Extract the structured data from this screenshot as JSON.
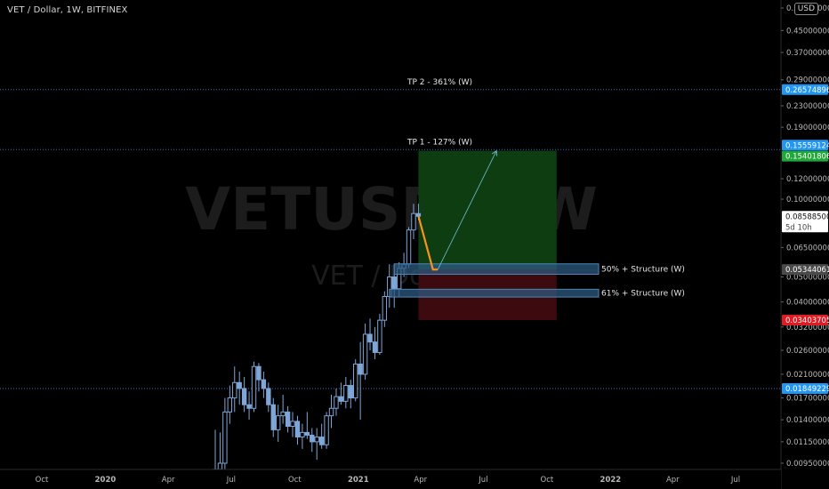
{
  "header": {
    "title": "VET / Dollar, 1W, BITFINEX",
    "currency": "USD"
  },
  "watermark": {
    "symbol": "VETUSD, 1W",
    "description": "VET / Dollar"
  },
  "colors": {
    "background": "#000000",
    "candle": "#7ea7d8",
    "accent_orange": "#f7941d",
    "projection_line": "#6ec0d6",
    "dotted_line": "#3f6fb8",
    "tp_label_bg": "#2196f3",
    "profit_zone": "#0f3d12",
    "loss_zone": "#3d0b0f",
    "target_label_bg": "#22a83a",
    "stop_label_bg": "#e01b24",
    "structure_box": "#2e5a80",
    "structure_box_border": "#4a86b8"
  },
  "chart_data": {
    "type": "candlestick",
    "yscale": "log",
    "ylim": [
      0.0085,
      0.6
    ],
    "y_ticks": [
      "0.55000000",
      "0.45000000",
      "0.37000000",
      "0.29000000",
      "0.23000000",
      "0.19000000",
      "0.12000000",
      "0.10000000",
      "0.06500000",
      "0.05000000",
      "0.04000000",
      "0.03200000",
      "0.02600000",
      "0.02100000",
      "0.01700000",
      "0.01400000",
      "0.01150000",
      "0.00950000"
    ],
    "x_ticks": [
      "Oct",
      "2020",
      "Apr",
      "Jul",
      "Oct",
      "2021",
      "Apr",
      "Jul",
      "Oct",
      "2022",
      "Apr",
      "Jul"
    ],
    "x_tick_dates": [
      "2019-10-01",
      "2020-01-01",
      "2020-04-01",
      "2020-07-01",
      "2020-10-01",
      "2021-01-01",
      "2021-04-01",
      "2021-07-01",
      "2021-10-01",
      "2022-01-01",
      "2022-04-01",
      "2022-07-01"
    ],
    "candles": [
      {
        "date": "2020-06-08",
        "o": 0.0088,
        "h": 0.0128,
        "l": 0.008,
        "c": 0.009
      },
      {
        "date": "2020-06-15",
        "o": 0.009,
        "h": 0.0125,
        "l": 0.0082,
        "c": 0.0095
      },
      {
        "date": "2020-06-22",
        "o": 0.0095,
        "h": 0.017,
        "l": 0.0088,
        "c": 0.015
      },
      {
        "date": "2020-06-29",
        "o": 0.015,
        "h": 0.019,
        "l": 0.0135,
        "c": 0.017
      },
      {
        "date": "2020-07-06",
        "o": 0.017,
        "h": 0.0225,
        "l": 0.015,
        "c": 0.0195
      },
      {
        "date": "2020-07-13",
        "o": 0.0195,
        "h": 0.0215,
        "l": 0.016,
        "c": 0.0185
      },
      {
        "date": "2020-07-20",
        "o": 0.0185,
        "h": 0.0205,
        "l": 0.015,
        "c": 0.016
      },
      {
        "date": "2020-07-27",
        "o": 0.016,
        "h": 0.018,
        "l": 0.014,
        "c": 0.0155
      },
      {
        "date": "2020-08-03",
        "o": 0.0155,
        "h": 0.0235,
        "l": 0.015,
        "c": 0.0225
      },
      {
        "date": "2020-08-10",
        "o": 0.0225,
        "h": 0.0232,
        "l": 0.018,
        "c": 0.02
      },
      {
        "date": "2020-08-17",
        "o": 0.02,
        "h": 0.0215,
        "l": 0.017,
        "c": 0.0185
      },
      {
        "date": "2020-08-24",
        "o": 0.0185,
        "h": 0.0195,
        "l": 0.015,
        "c": 0.016
      },
      {
        "date": "2020-08-31",
        "o": 0.016,
        "h": 0.017,
        "l": 0.012,
        "c": 0.0128
      },
      {
        "date": "2020-09-07",
        "o": 0.0128,
        "h": 0.016,
        "l": 0.0115,
        "c": 0.0145
      },
      {
        "date": "2020-09-14",
        "o": 0.0145,
        "h": 0.0175,
        "l": 0.0135,
        "c": 0.015
      },
      {
        "date": "2020-09-21",
        "o": 0.015,
        "h": 0.0158,
        "l": 0.0125,
        "c": 0.0132
      },
      {
        "date": "2020-09-28",
        "o": 0.0132,
        "h": 0.015,
        "l": 0.012,
        "c": 0.0138
      },
      {
        "date": "2020-10-05",
        "o": 0.0138,
        "h": 0.0145,
        "l": 0.0112,
        "c": 0.012
      },
      {
        "date": "2020-10-12",
        "o": 0.012,
        "h": 0.0135,
        "l": 0.0108,
        "c": 0.0125
      },
      {
        "date": "2020-10-19",
        "o": 0.0125,
        "h": 0.015,
        "l": 0.0118,
        "c": 0.0122
      },
      {
        "date": "2020-10-26",
        "o": 0.0122,
        "h": 0.013,
        "l": 0.0105,
        "c": 0.0115
      },
      {
        "date": "2020-11-02",
        "o": 0.0115,
        "h": 0.013,
        "l": 0.0098,
        "c": 0.012
      },
      {
        "date": "2020-11-09",
        "o": 0.012,
        "h": 0.0135,
        "l": 0.0108,
        "c": 0.0112
      },
      {
        "date": "2020-11-16",
        "o": 0.0112,
        "h": 0.015,
        "l": 0.0108,
        "c": 0.0145
      },
      {
        "date": "2020-11-23",
        "o": 0.0145,
        "h": 0.0175,
        "l": 0.013,
        "c": 0.0155
      },
      {
        "date": "2020-11-30",
        "o": 0.0155,
        "h": 0.0185,
        "l": 0.0145,
        "c": 0.0172
      },
      {
        "date": "2020-12-07",
        "o": 0.0172,
        "h": 0.0195,
        "l": 0.016,
        "c": 0.0165
      },
      {
        "date": "2020-12-14",
        "o": 0.0165,
        "h": 0.0205,
        "l": 0.0155,
        "c": 0.019
      },
      {
        "date": "2020-12-21",
        "o": 0.019,
        "h": 0.02,
        "l": 0.0155,
        "c": 0.017
      },
      {
        "date": "2020-12-28",
        "o": 0.017,
        "h": 0.024,
        "l": 0.0165,
        "c": 0.023
      },
      {
        "date": "2021-01-04",
        "o": 0.023,
        "h": 0.028,
        "l": 0.014,
        "c": 0.021
      },
      {
        "date": "2021-01-11",
        "o": 0.021,
        "h": 0.033,
        "l": 0.02,
        "c": 0.03
      },
      {
        "date": "2021-01-18",
        "o": 0.03,
        "h": 0.0345,
        "l": 0.026,
        "c": 0.028
      },
      {
        "date": "2021-01-25",
        "o": 0.028,
        "h": 0.032,
        "l": 0.024,
        "c": 0.0255
      },
      {
        "date": "2021-02-01",
        "o": 0.0255,
        "h": 0.036,
        "l": 0.025,
        "c": 0.034
      },
      {
        "date": "2021-02-08",
        "o": 0.034,
        "h": 0.044,
        "l": 0.032,
        "c": 0.042
      },
      {
        "date": "2021-02-15",
        "o": 0.042,
        "h": 0.056,
        "l": 0.038,
        "c": 0.05
      },
      {
        "date": "2021-02-22",
        "o": 0.05,
        "h": 0.056,
        "l": 0.038,
        "c": 0.045
      },
      {
        "date": "2021-03-01",
        "o": 0.045,
        "h": 0.057,
        "l": 0.042,
        "c": 0.054
      },
      {
        "date": "2021-03-08",
        "o": 0.054,
        "h": 0.062,
        "l": 0.05,
        "c": 0.056
      },
      {
        "date": "2021-03-15",
        "o": 0.056,
        "h": 0.078,
        "l": 0.054,
        "c": 0.076
      },
      {
        "date": "2021-03-22",
        "o": 0.076,
        "h": 0.096,
        "l": 0.07,
        "c": 0.088
      },
      {
        "date": "2021-03-29",
        "o": 0.088,
        "h": 0.096,
        "l": 0.083,
        "c": 0.0859
      }
    ],
    "current_price": "0.08588500",
    "countdown": "5d 10h",
    "price_labels": [
      {
        "value": 0.26574896,
        "text": "0.26574896",
        "role": "tp2"
      },
      {
        "value": 0.15559124,
        "text": "0.15559124",
        "role": "tp1"
      },
      {
        "value": 0.15401806,
        "text": "0.15401806",
        "role": "target"
      },
      {
        "value": 0.05344061,
        "text": "0.05344061",
        "role": "entry"
      },
      {
        "value": 0.03403705,
        "text": "0.03403705",
        "role": "stop"
      },
      {
        "value": 0.01849229,
        "text": "0.01849229",
        "role": "level"
      }
    ],
    "horizontal_lines": [
      {
        "value": 0.26574896,
        "label": "TP 2 - 361% (W)"
      },
      {
        "value": 0.15559124,
        "label": "TP 1 - 127% (W)"
      },
      {
        "value": 0.01849229,
        "label": ""
      }
    ],
    "position": {
      "entry": 0.05344061,
      "target": 0.15401806,
      "stop": 0.03403705,
      "start_date": "2021-03-29",
      "end_date": "2021-10-15"
    },
    "structure_zones": [
      {
        "label": "50% + Structure (W)",
        "top": 0.0562,
        "bottom": 0.0512,
        "start_date": "2021-02-22",
        "end_date": "2021-12-15"
      },
      {
        "label": "61% + Structure (W)",
        "top": 0.0448,
        "bottom": 0.0418,
        "start_date": "2021-02-15",
        "end_date": "2021-12-15"
      }
    ],
    "projection_path": [
      {
        "date": "2021-03-29",
        "value": 0.086
      },
      {
        "date": "2021-04-19",
        "value": 0.0534
      },
      {
        "date": "2021-04-26",
        "value": 0.0534
      },
      {
        "date": "2021-07-20",
        "value": 0.154
      }
    ]
  }
}
